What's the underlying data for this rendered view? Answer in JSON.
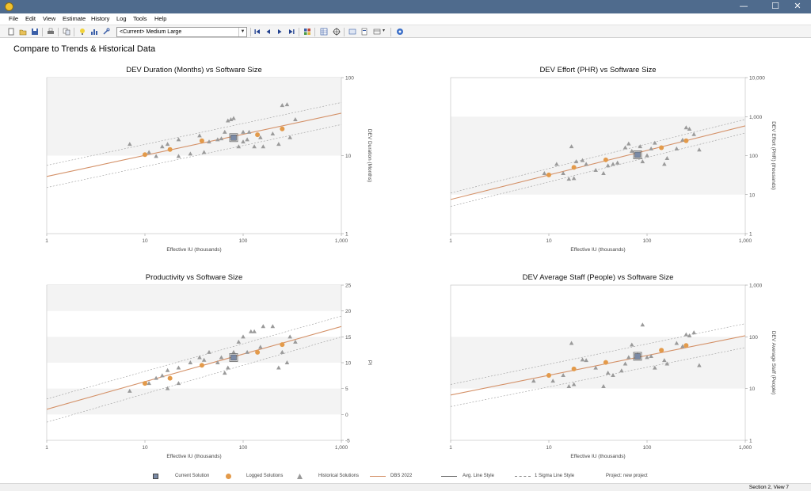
{
  "window": {
    "minimize": "—",
    "maximize": "☐",
    "close": "✕"
  },
  "menu": [
    "File",
    "Edit",
    "View",
    "Estimate",
    "History",
    "Log",
    "Tools",
    "Help"
  ],
  "toolbar": {
    "combo_value": "<Current> Medium Large"
  },
  "section_title": "Compare to Trends & Historical Data",
  "colors": {
    "trend": "#d49168",
    "logged": "#e39a4a",
    "historical": "#9a9a9a",
    "current": "#7a8aa6",
    "band": "#f3f3f3"
  },
  "chart_data": [
    {
      "type": "scatter",
      "title": "DEV Duration (Months) vs Software Size",
      "xlabel": "Effective IU (thousands)",
      "ylabel": "DEV Duration (Months)",
      "xscale": "log",
      "yscale": "log",
      "xlim": [
        1,
        1000
      ],
      "ylim": [
        1,
        100
      ],
      "xticks": [
        1,
        10,
        100,
        1000
      ],
      "xtick_labels": [
        "1",
        "10",
        "100",
        "1,000"
      ],
      "yticks": [
        1,
        10,
        100
      ],
      "ytick_labels": [
        "1",
        "10",
        "100"
      ],
      "bands": [
        [
          10,
          100
        ]
      ],
      "trend": [
        [
          1,
          5.4
        ],
        [
          1000,
          35
        ]
      ],
      "sigma_upper": [
        [
          1,
          7.5
        ],
        [
          1000,
          48
        ]
      ],
      "sigma_lower": [
        [
          1,
          3.9
        ],
        [
          1000,
          25
        ]
      ],
      "current": [
        [
          80,
          17
        ]
      ],
      "logged": [
        [
          10,
          10.3
        ],
        [
          18,
          12
        ],
        [
          38,
          15.5
        ],
        [
          140,
          18.5
        ],
        [
          250,
          22
        ]
      ],
      "historical": [
        [
          7,
          14
        ],
        [
          11,
          11
        ],
        [
          13,
          9.8
        ],
        [
          15,
          13
        ],
        [
          17,
          14
        ],
        [
          22,
          9.8
        ],
        [
          22,
          16
        ],
        [
          29,
          10.5
        ],
        [
          36,
          18
        ],
        [
          40,
          11
        ],
        [
          45,
          15
        ],
        [
          55,
          16
        ],
        [
          60,
          16.5
        ],
        [
          65,
          20
        ],
        [
          70,
          28
        ],
        [
          75,
          29
        ],
        [
          80,
          30
        ],
        [
          90,
          13
        ],
        [
          100,
          20
        ],
        [
          100,
          15
        ],
        [
          110,
          16
        ],
        [
          115,
          20
        ],
        [
          130,
          13
        ],
        [
          150,
          17
        ],
        [
          160,
          13
        ],
        [
          200,
          19
        ],
        [
          230,
          14
        ],
        [
          250,
          44
        ],
        [
          280,
          45
        ],
        [
          300,
          17
        ],
        [
          340,
          29
        ]
      ]
    },
    {
      "type": "scatter",
      "title": "DEV Effort (PHR) vs Software Size",
      "xlabel": "Effective IU (thousands)",
      "ylabel": "DEV Effort (PHR) (thousands)",
      "xscale": "log",
      "yscale": "log",
      "xlim": [
        1,
        1000
      ],
      "ylim": [
        1,
        10000
      ],
      "xticks": [
        1,
        10,
        100,
        1000
      ],
      "xtick_labels": [
        "1",
        "10",
        "100",
        "1,000"
      ],
      "yticks": [
        1,
        10,
        100,
        1000,
        10000
      ],
      "ytick_labels": [
        "1",
        "10",
        "100",
        "1,000",
        "10,000"
      ],
      "bands": [
        [
          10,
          1000
        ]
      ],
      "trend": [
        [
          1,
          7.5
        ],
        [
          1000,
          580
        ]
      ],
      "sigma_upper": [
        [
          1,
          11
        ],
        [
          1000,
          850
        ]
      ],
      "sigma_lower": [
        [
          1,
          5
        ],
        [
          1000,
          380
        ]
      ],
      "current": [
        [
          80,
          105
        ]
      ],
      "logged": [
        [
          10,
          32
        ],
        [
          18,
          50
        ],
        [
          38,
          78
        ],
        [
          140,
          160
        ],
        [
          250,
          240
        ]
      ],
      "historical": [
        [
          9,
          35
        ],
        [
          12,
          60
        ],
        [
          14,
          35
        ],
        [
          16,
          25
        ],
        [
          17,
          170
        ],
        [
          18,
          26
        ],
        [
          19,
          70
        ],
        [
          22,
          75
        ],
        [
          24,
          60
        ],
        [
          30,
          42
        ],
        [
          36,
          35
        ],
        [
          40,
          55
        ],
        [
          45,
          60
        ],
        [
          50,
          65
        ],
        [
          60,
          160
        ],
        [
          65,
          200
        ],
        [
          70,
          130
        ],
        [
          80,
          110
        ],
        [
          85,
          170
        ],
        [
          90,
          70
        ],
        [
          100,
          100
        ],
        [
          110,
          150
        ],
        [
          120,
          210
        ],
        [
          150,
          60
        ],
        [
          160,
          85
        ],
        [
          200,
          150
        ],
        [
          230,
          250
        ],
        [
          250,
          520
        ],
        [
          270,
          480
        ],
        [
          300,
          350
        ],
        [
          340,
          140
        ]
      ]
    },
    {
      "type": "scatter",
      "title": "Productivity vs Software Size",
      "xlabel": "Effective IU (thousands)",
      "ylabel": "PI",
      "xscale": "log",
      "yscale": "linear",
      "xlim": [
        1,
        1000
      ],
      "ylim": [
        -5,
        25
      ],
      "xticks": [
        1,
        10,
        100,
        1000
      ],
      "xtick_labels": [
        "1",
        "10",
        "100",
        "1,000"
      ],
      "yticks": [
        -5,
        0,
        5,
        10,
        15,
        20,
        25
      ],
      "ytick_labels": [
        "-5",
        "0",
        "5",
        "10",
        "15",
        "20",
        "25"
      ],
      "bands": [
        [
          0,
          5
        ],
        [
          10,
          15
        ],
        [
          20,
          25
        ]
      ],
      "trend": [
        [
          1,
          1
        ],
        [
          1000,
          17
        ]
      ],
      "sigma_upper": [
        [
          1,
          3
        ],
        [
          1000,
          19
        ]
      ],
      "sigma_lower": [
        [
          1,
          -1.5
        ],
        [
          1000,
          15
        ]
      ],
      "current": [
        [
          80,
          11
        ]
      ],
      "logged": [
        [
          10,
          6
        ],
        [
          18,
          7
        ],
        [
          38,
          9.5
        ],
        [
          140,
          12
        ],
        [
          250,
          13.5
        ]
      ],
      "historical": [
        [
          7,
          4.5
        ],
        [
          11,
          6
        ],
        [
          13,
          7
        ],
        [
          15,
          7.5
        ],
        [
          17,
          5
        ],
        [
          17,
          8.5
        ],
        [
          22,
          6
        ],
        [
          22,
          9
        ],
        [
          29,
          10
        ],
        [
          36,
          11
        ],
        [
          40,
          10.5
        ],
        [
          45,
          12
        ],
        [
          55,
          10
        ],
        [
          60,
          11
        ],
        [
          65,
          8
        ],
        [
          70,
          9
        ],
        [
          80,
          12
        ],
        [
          90,
          14
        ],
        [
          100,
          15
        ],
        [
          110,
          12
        ],
        [
          120,
          16
        ],
        [
          130,
          16
        ],
        [
          150,
          13
        ],
        [
          160,
          17
        ],
        [
          200,
          17
        ],
        [
          230,
          9
        ],
        [
          250,
          12
        ],
        [
          280,
          10
        ],
        [
          300,
          15
        ],
        [
          340,
          14
        ]
      ]
    },
    {
      "type": "scatter",
      "title": "DEV Average Staff (People) vs Software Size",
      "xlabel": "Effective IU (thousands)",
      "ylabel": "DEV Average Staff (People)",
      "xscale": "log",
      "yscale": "log",
      "xlim": [
        1,
        1000
      ],
      "ylim": [
        1,
        1000
      ],
      "xticks": [
        1,
        10,
        100,
        1000
      ],
      "xtick_labels": [
        "1",
        "10",
        "100",
        "1,000"
      ],
      "yticks": [
        1,
        10,
        100,
        1000
      ],
      "ytick_labels": [
        "1",
        "10",
        "100",
        "1,000"
      ],
      "bands": [
        [
          10,
          100
        ]
      ],
      "trend": [
        [
          1,
          7.5
        ],
        [
          1000,
          105
        ]
      ],
      "sigma_upper": [
        [
          1,
          12
        ],
        [
          1000,
          180
        ]
      ],
      "sigma_lower": [
        [
          1,
          4.5
        ],
        [
          1000,
          62
        ]
      ],
      "current": [
        [
          80,
          42
        ]
      ],
      "logged": [
        [
          10,
          18
        ],
        [
          18,
          24
        ],
        [
          38,
          32
        ],
        [
          140,
          55
        ],
        [
          250,
          68
        ]
      ],
      "historical": [
        [
          7,
          14
        ],
        [
          11,
          14
        ],
        [
          14,
          18
        ],
        [
          16,
          11
        ],
        [
          17,
          75
        ],
        [
          18,
          12
        ],
        [
          22,
          36
        ],
        [
          24,
          35
        ],
        [
          30,
          25
        ],
        [
          36,
          11
        ],
        [
          40,
          20
        ],
        [
          45,
          18
        ],
        [
          55,
          22
        ],
        [
          60,
          30
        ],
        [
          65,
          40
        ],
        [
          70,
          70
        ],
        [
          80,
          45
        ],
        [
          90,
          170
        ],
        [
          100,
          40
        ],
        [
          110,
          42
        ],
        [
          120,
          25
        ],
        [
          150,
          35
        ],
        [
          160,
          30
        ],
        [
          200,
          75
        ],
        [
          230,
          65
        ],
        [
          250,
          110
        ],
        [
          270,
          105
        ],
        [
          300,
          120
        ],
        [
          340,
          28
        ]
      ]
    }
  ],
  "legend": {
    "current": "Current Solution",
    "logged": "Logged Solutions",
    "historical": "Historical Solutions",
    "dbs": "DBS 2022",
    "avg": "Avg. Line Style",
    "sigma": "1 Sigma Line Style",
    "project": "Project: new project"
  },
  "status": {
    "text": "Section 2, View 7"
  }
}
